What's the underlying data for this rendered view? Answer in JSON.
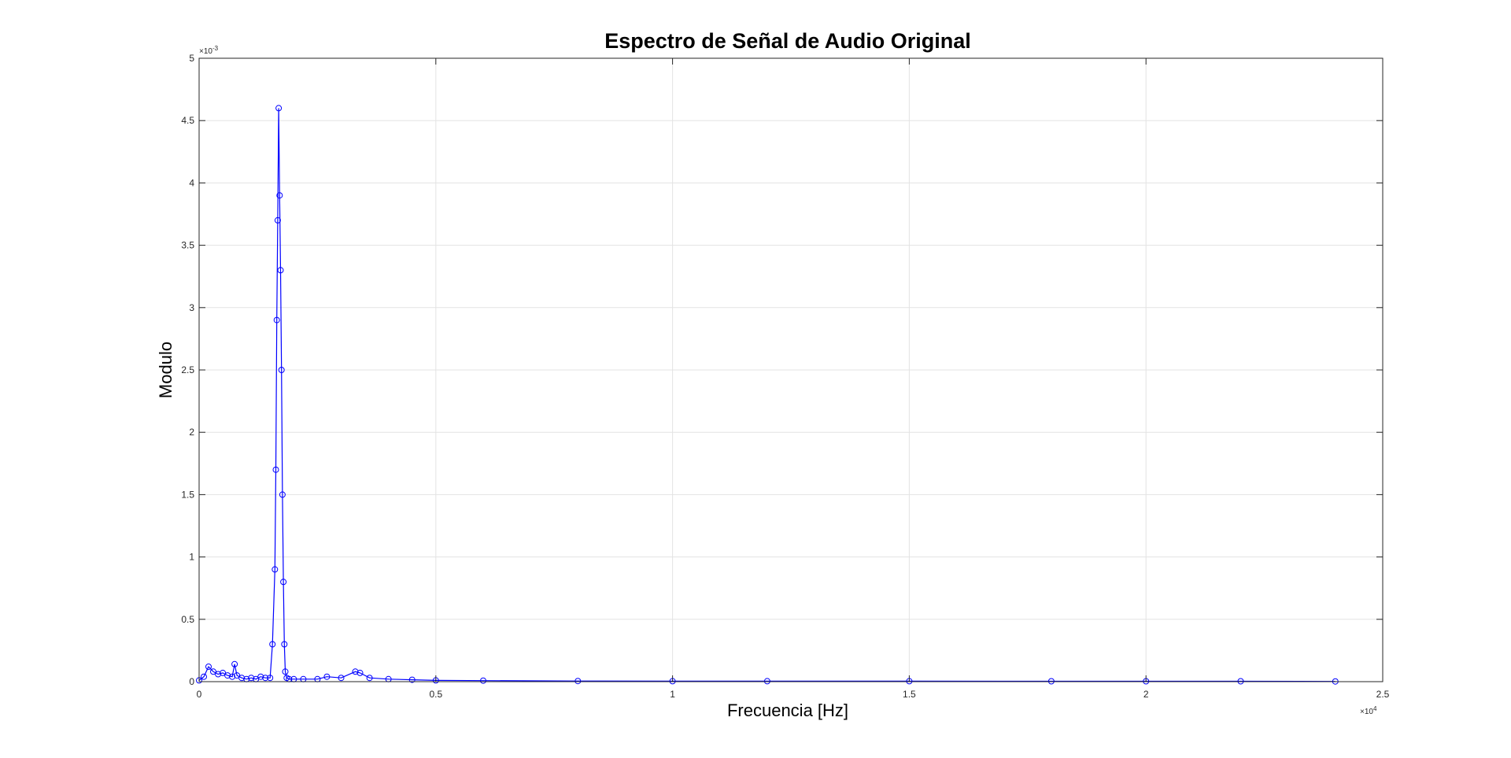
{
  "chart_data": {
    "type": "line",
    "title": "Espectro de Señal de Audio Original",
    "xlabel": "Frecuencia [Hz]",
    "ylabel": "Modulo",
    "x_exponent_label": "×10",
    "x_exponent_power": "4",
    "y_exponent_label": "×10",
    "y_exponent_power": "-3",
    "xlim": [
      0,
      25000
    ],
    "ylim": [
      0,
      0.005
    ],
    "x_ticks": [
      0,
      5000,
      10000,
      15000,
      20000,
      25000
    ],
    "x_tick_labels": [
      "0",
      "0.5",
      "1",
      "1.5",
      "2",
      "2.5"
    ],
    "y_ticks": [
      0,
      0.0005,
      0.001,
      0.0015,
      0.002,
      0.0025,
      0.003,
      0.0035,
      0.004,
      0.0045,
      0.005
    ],
    "y_tick_labels": [
      "0",
      "0.5",
      "1",
      "1.5",
      "2",
      "2.5",
      "3",
      "3.5",
      "4",
      "4.5",
      "5"
    ],
    "grid": true,
    "marker": "circle",
    "color": "#0000ff",
    "series": [
      {
        "x": [
          0,
          100,
          200,
          300,
          400,
          500,
          600,
          700,
          750,
          800,
          900,
          1000,
          1100,
          1200,
          1300,
          1400,
          1500,
          1550,
          1600,
          1620,
          1640,
          1660,
          1680,
          1700,
          1720,
          1740,
          1760,
          1780,
          1800,
          1820,
          1850,
          1900,
          2000,
          2200,
          2500,
          2700,
          3000,
          3300,
          3400,
          3600,
          4000,
          4500,
          5000,
          6000,
          8000,
          10000,
          12000,
          15000,
          18000,
          20000,
          22000,
          24000
        ],
        "y": [
          1e-05,
          4e-05,
          0.00012,
          8e-05,
          6e-05,
          7e-05,
          5e-05,
          4e-05,
          0.00014,
          5e-05,
          3e-05,
          2e-05,
          3e-05,
          2e-05,
          4e-05,
          3e-05,
          3e-05,
          0.0003,
          0.0009,
          0.0017,
          0.0029,
          0.0037,
          0.0046,
          0.0039,
          0.0033,
          0.0025,
          0.0015,
          0.0008,
          0.0003,
          8e-05,
          3e-05,
          2e-05,
          2e-05,
          2e-05,
          2e-05,
          4e-05,
          3e-05,
          8e-05,
          7e-05,
          3e-05,
          2e-05,
          1.5e-05,
          1e-05,
          8e-06,
          5e-06,
          4e-06,
          4e-06,
          4e-06,
          3e-06,
          3e-06,
          3e-06,
          2e-06
        ]
      }
    ]
  }
}
